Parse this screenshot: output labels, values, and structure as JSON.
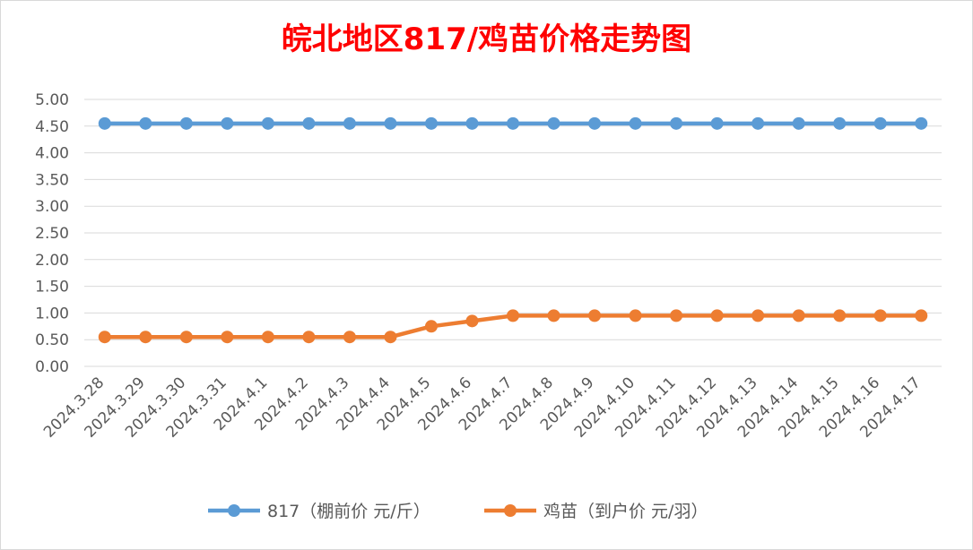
{
  "chart_data": {
    "type": "line",
    "title": "皖北地区817/鸡苗价格走势图",
    "categories": [
      "2024.3.28",
      "2024.3.29",
      "2024.3.30",
      "2024.3.31",
      "2024.4.1",
      "2024.4.2",
      "2024.4.3",
      "2024.4.4",
      "2024.4.5",
      "2024.4.6",
      "2024.4.7",
      "2024.4.8",
      "2024.4.9",
      "2024.4.10",
      "2024.4.11",
      "2024.4.12",
      "2024.4.13",
      "2024.4.14",
      "2024.4.15",
      "2024.4.16",
      "2024.4.17"
    ],
    "series": [
      {
        "name": "817（棚前价 元/斤）",
        "color": "#5b9bd5",
        "values": [
          4.55,
          4.55,
          4.55,
          4.55,
          4.55,
          4.55,
          4.55,
          4.55,
          4.55,
          4.55,
          4.55,
          4.55,
          4.55,
          4.55,
          4.55,
          4.55,
          4.55,
          4.55,
          4.55,
          4.55,
          4.55
        ]
      },
      {
        "name": "鸡苗（到户价 元/羽）",
        "color": "#ed7d31",
        "values": [
          0.55,
          0.55,
          0.55,
          0.55,
          0.55,
          0.55,
          0.55,
          0.55,
          0.75,
          0.85,
          0.95,
          0.95,
          0.95,
          0.95,
          0.95,
          0.95,
          0.95,
          0.95,
          0.95,
          0.95,
          0.95
        ]
      }
    ],
    "ylim": [
      0,
      5
    ],
    "yticks": [
      "0.00",
      "0.50",
      "1.00",
      "1.50",
      "2.00",
      "2.50",
      "3.00",
      "3.50",
      "4.00",
      "4.50",
      "5.00"
    ],
    "xlabel": "",
    "ylabel": "",
    "grid": true,
    "legend": "bottom"
  }
}
